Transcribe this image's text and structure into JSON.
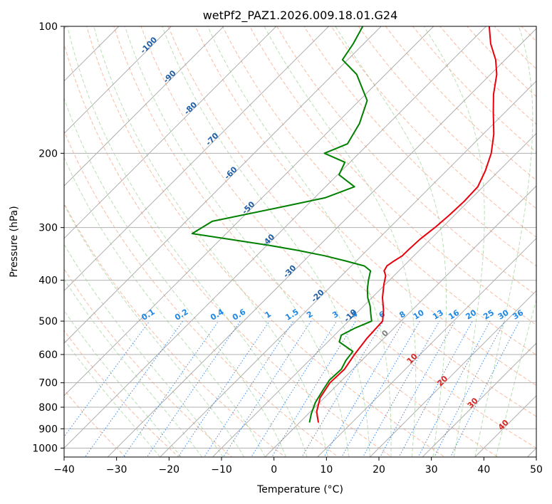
{
  "chart_data": {
    "type": "line",
    "chart_kind": "skew-t log-p diagram",
    "title": "wetPf2_PAZ1.2026.009.18.01.G24",
    "xlabel": "Temperature (°C)",
    "ylabel": "Pressure (hPa)",
    "xlim": [
      -40,
      50
    ],
    "ylim": [
      1050,
      100
    ],
    "x_ticks": [
      -40,
      -30,
      -20,
      -10,
      0,
      10,
      20,
      30,
      40,
      50
    ],
    "x_tick_labels": [
      "−40",
      "−30",
      "−20",
      "−10",
      "0",
      "10",
      "20",
      "30",
      "40",
      "50"
    ],
    "y_ticks": [
      100,
      200,
      300,
      400,
      500,
      600,
      700,
      800,
      900,
      1000
    ],
    "y_tick_labels": [
      "100",
      "200",
      "300",
      "400",
      "500",
      "600",
      "700",
      "800",
      "900",
      "1000"
    ],
    "grid": true,
    "series": [
      {
        "name": "Temperature",
        "color": "#e8000b",
        "pressure": [
          870,
          820,
          760,
          700,
          650,
          600,
          550,
          500,
          470,
          440,
          410,
          390,
          380,
          370,
          360,
          350,
          340,
          320,
          300,
          280,
          260,
          240,
          220,
          200,
          180,
          160,
          145,
          130,
          120,
          110,
          100
        ],
        "temperature": [
          3.6,
          1.2,
          -0.8,
          -1.8,
          -1.6,
          -2.5,
          -3.2,
          -3.5,
          -5.5,
          -8,
          -10.2,
          -11.6,
          -12.8,
          -13.2,
          -12.8,
          -12.2,
          -12.2,
          -12,
          -11.4,
          -11,
          -10.8,
          -11,
          -12.6,
          -14.8,
          -18,
          -22.2,
          -25.6,
          -28.8,
          -31.8,
          -35.8,
          -39.4
        ]
      },
      {
        "name": "Dewpoint",
        "color": "#008000",
        "pressure": [
          870,
          830,
          780,
          730,
          690,
          650,
          620,
          590,
          560,
          540,
          520,
          500,
          480,
          460,
          440,
          420,
          400,
          380,
          370,
          360,
          350,
          340,
          330,
          310,
          290,
          270,
          255,
          240,
          225,
          210,
          200,
          190,
          170,
          150,
          130,
          120,
          110,
          100
        ],
        "temperature": [
          1.9,
          0.6,
          -0.8,
          -1.7,
          -2.4,
          -2.2,
          -3,
          -3.4,
          -7.8,
          -8.7,
          -7.5,
          -5.6,
          -7.2,
          -8.8,
          -10.8,
          -12.5,
          -14,
          -15.4,
          -17.5,
          -22,
          -27,
          -33,
          -40,
          -56.5,
          -55,
          -45.5,
          -38,
          -34.5,
          -39.7,
          -41,
          -46.6,
          -44,
          -45.6,
          -48.5,
          -55.5,
          -61,
          -62,
          -63.5
        ]
      }
    ],
    "reference_lines": {
      "dry_adiabats": "dashed orange",
      "moist_adiabats": "dashed green",
      "mixing_ratio_lines": "dotted blue",
      "isotherms": "solid grey"
    },
    "isotherm_labels_blue": [
      "-100",
      "-90",
      "-80",
      "-70",
      "-60",
      "-50",
      "-40",
      "-30",
      "-20",
      "-10"
    ],
    "mixing_ratio_labels": [
      "0.1",
      "0.2",
      "0.4",
      "0.6",
      "1",
      "1.5",
      "2",
      "3",
      "4",
      "6",
      "8",
      "10",
      "13",
      "16",
      "20",
      "25",
      "30",
      "36"
    ],
    "isotherm_labels_warm": [
      {
        "text": "0",
        "color": "#808080"
      },
      {
        "text": "10",
        "color": "#d62728"
      },
      {
        "text": "20",
        "color": "#d62728"
      },
      {
        "text": "30",
        "color": "#d62728"
      },
      {
        "text": "40",
        "color": "#d62728"
      }
    ]
  }
}
